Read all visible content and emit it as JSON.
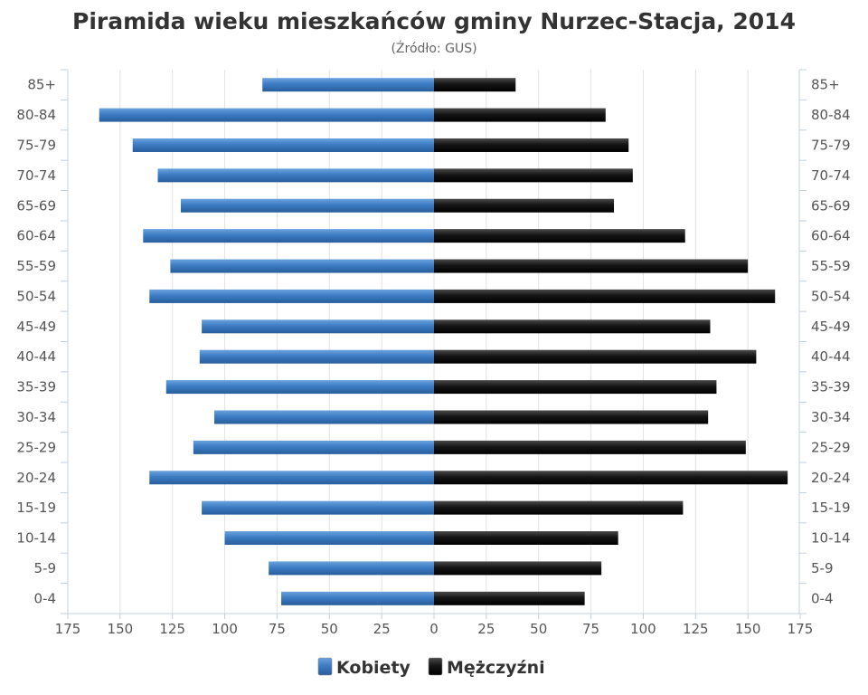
{
  "chart_data": {
    "type": "bar",
    "orientation": "horizontal",
    "title": "Piramida wieku mieszkańców gminy Nurzec-Stacja, 2014",
    "subtitle": "(Źródło: GUS)",
    "categories": [
      "85+",
      "80-84",
      "75-79",
      "70-74",
      "65-69",
      "60-64",
      "55-59",
      "50-54",
      "45-49",
      "40-44",
      "35-39",
      "30-34",
      "25-29",
      "20-24",
      "15-19",
      "10-14",
      "5-9",
      "0-4"
    ],
    "x_ticks": [
      "175",
      "150",
      "125",
      "100",
      "75",
      "50",
      "25",
      "0",
      "25",
      "50",
      "75",
      "100",
      "125",
      "150",
      "175"
    ],
    "xlim": [
      -175,
      175
    ],
    "grid": true,
    "legend_position": "bottom",
    "series": [
      {
        "name": "Kobiety",
        "color": "#3d7cc3",
        "values": [
          82,
          160,
          144,
          132,
          121,
          139,
          126,
          136,
          111,
          112,
          128,
          105,
          115,
          136,
          111,
          100,
          79,
          73
        ]
      },
      {
        "name": "Mężczyźni",
        "color": "#1a1a1a",
        "values": [
          39,
          82,
          93,
          95,
          86,
          120,
          150,
          163,
          132,
          154,
          135,
          131,
          149,
          169,
          119,
          88,
          80,
          72
        ]
      }
    ]
  }
}
